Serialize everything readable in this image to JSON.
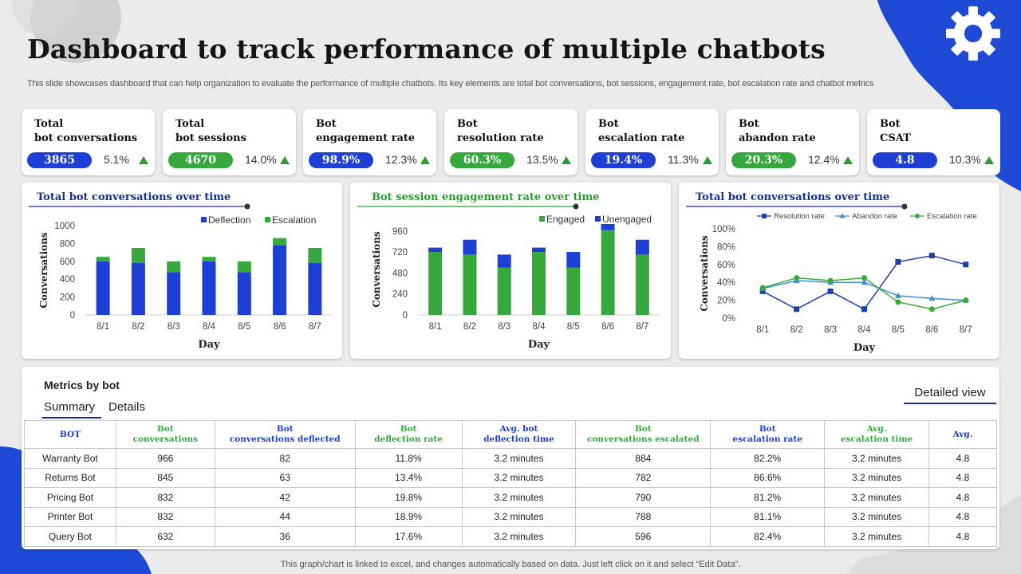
{
  "page": {
    "title": "Dashboard to track performance of multiple chatbots",
    "subtitle": "This slide showcases dashboard that can help organization to evaluate the performance of multiple chatbots. Its key elements are total bot conversations, bot sessions, engagement rate, bot escalation rate and chatbot metrics",
    "footer": "This graph/chart is linked to excel, and changes automatically based on data. Just left click on it and select “Edit Data”."
  },
  "colors": {
    "blue": "#1e3fd6",
    "green": "#36a83d",
    "navy": "#1a2f8a",
    "up_arrow": "#2f9a37"
  },
  "kpis": [
    {
      "line1": "Total",
      "line2": "bot conversations",
      "value": "3865",
      "change": "5.1%",
      "color": "blue"
    },
    {
      "line1": "Total",
      "line2": "bot sessions",
      "value": "4670",
      "change": "14.0%",
      "color": "green"
    },
    {
      "line1": "Bot",
      "line2": "engagement rate",
      "value": "98.9%",
      "change": "12.3%",
      "color": "blue"
    },
    {
      "line1": "Bot",
      "line2": "resolution rate",
      "value": "60.3%",
      "change": "13.5%",
      "color": "green"
    },
    {
      "line1": "Bot",
      "line2": "escalation rate",
      "value": "19.4%",
      "change": "11.3%",
      "color": "blue"
    },
    {
      "line1": "Bot",
      "line2": "abandon rate",
      "value": "20.3%",
      "change": "12.4%",
      "color": "green"
    },
    {
      "line1": "Bot",
      "line2": "CSAT",
      "value": "4.8",
      "change": "10.3%",
      "color": "blue"
    }
  ],
  "chart_data": [
    {
      "type": "bar",
      "stacked": true,
      "title": "Total bot conversations over time",
      "xlabel": "Day",
      "ylabel": "Conversations",
      "categories": [
        "8/1",
        "8/2",
        "8/3",
        "8/4",
        "8/5",
        "8/6",
        "8/7"
      ],
      "ylim": [
        0,
        1000
      ],
      "yticks": [
        "0",
        "200",
        "400",
        "600",
        "800",
        "1000"
      ],
      "legend_position": "top-right",
      "series": [
        {
          "name": "Deflection",
          "color": "#1e3fd6",
          "values": [
            600,
            580,
            480,
            600,
            480,
            780,
            580
          ]
        },
        {
          "name": "Escalation",
          "color": "#36a83d",
          "values": [
            50,
            170,
            120,
            50,
            120,
            80,
            170
          ]
        }
      ]
    },
    {
      "type": "bar",
      "stacked": true,
      "title": "Bot session engagement rate over time",
      "xlabel": "Day",
      "ylabel": "Conversations",
      "categories": [
        "8/1",
        "8/2",
        "8/3",
        "8/4",
        "8/5",
        "8/6",
        "8/7"
      ],
      "ylim": [
        0,
        1040
      ],
      "yticks": [
        "0",
        "240",
        "480",
        "720",
        "960"
      ],
      "legend_position": "top-right",
      "series": [
        {
          "name": "Engaged",
          "color": "#36a83d",
          "values": [
            720,
            690,
            540,
            720,
            540,
            970,
            690
          ]
        },
        {
          "name": "Unengaged",
          "color": "#1e3fd6",
          "values": [
            50,
            170,
            150,
            50,
            180,
            70,
            170
          ]
        }
      ]
    },
    {
      "type": "line",
      "title": "Total bot conversations over time",
      "xlabel": "Day",
      "ylabel": "Conversations",
      "categories": [
        "8/1",
        "8/2",
        "8/3",
        "8/4",
        "8/5",
        "8/6",
        "8/7"
      ],
      "ylim": [
        0,
        100
      ],
      "yticks": [
        "0%",
        "20%",
        "40%",
        "60%",
        "80%",
        "100%"
      ],
      "legend_position": "top",
      "series": [
        {
          "name": "Resolution rate",
          "color": "#1f3fa8",
          "marker": "square",
          "values": [
            30,
            10,
            30,
            10,
            63,
            70,
            60
          ]
        },
        {
          "name": "Abandon rate",
          "color": "#3f8fd0",
          "marker": "triangle",
          "values": [
            33,
            42,
            40,
            40,
            25,
            22,
            20
          ]
        },
        {
          "name": "Escalation rate",
          "color": "#3aaa3a",
          "marker": "circle",
          "values": [
            34,
            45,
            42,
            45,
            18,
            10,
            20
          ]
        }
      ]
    }
  ],
  "metrics": {
    "title": "Metrics by bot",
    "tabs": [
      "Summary",
      "Details"
    ],
    "detailed_view": "Detailed view",
    "columns": [
      {
        "line1": "BOT",
        "line2": "",
        "color": "#1e3fd6"
      },
      {
        "line1": "Bot",
        "line2": "conversations",
        "color": "#36a83d"
      },
      {
        "line1": "Bot",
        "line2": "conversations deflected",
        "color": "#1e3fd6"
      },
      {
        "line1": "Bot",
        "line2": "deflection rate",
        "color": "#36a83d"
      },
      {
        "line1": "Avg. bot",
        "line2": "deflection time",
        "color": "#1e3fd6"
      },
      {
        "line1": "Bot",
        "line2": "conversations escalated",
        "color": "#36a83d"
      },
      {
        "line1": "Bot",
        "line2": "escalation rate",
        "color": "#1e3fd6"
      },
      {
        "line1": "Avg.",
        "line2": "escalation time",
        "color": "#36a83d"
      },
      {
        "line1": "Avg.",
        "line2": "",
        "color": "#1e3fd6"
      }
    ],
    "rows": [
      [
        "Warranty Bot",
        "966",
        "82",
        "11.8%",
        "3.2 minutes",
        "884",
        "82.2%",
        "3.2 minutes",
        "4.8"
      ],
      [
        "Returns Bot",
        "845",
        "63",
        "13.4%",
        "3.2 minutes",
        "782",
        "86.6%",
        "3.2 minutes",
        "4.8"
      ],
      [
        "Pricing Bot",
        "832",
        "42",
        "19.8%",
        "3.2 minutes",
        "790",
        "81.2%",
        "3.2 minutes",
        "4.8"
      ],
      [
        "Printer Bot",
        "832",
        "44",
        "18.9%",
        "3.2 minutes",
        "788",
        "81.1%",
        "3.2 minutes",
        "4.8"
      ],
      [
        "Query Bot",
        "632",
        "36",
        "17.6%",
        "3.2 minutes",
        "596",
        "82.4%",
        "3.2 minutes",
        "4.8"
      ]
    ]
  }
}
